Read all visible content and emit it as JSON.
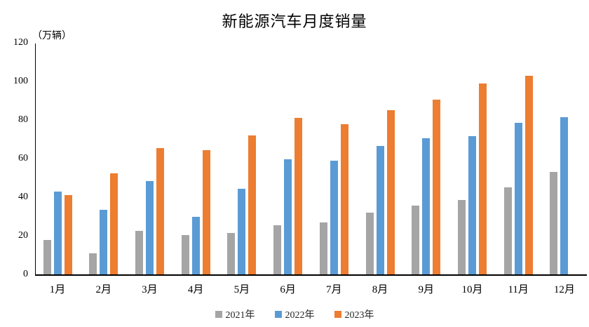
{
  "chart_data": {
    "type": "bar",
    "title": "新能源汽车月度销量",
    "unit_label": "（万辆）",
    "categories": [
      "1月",
      "2月",
      "3月",
      "4月",
      "5月",
      "6月",
      "7月",
      "8月",
      "9月",
      "10月",
      "11月",
      "12月"
    ],
    "series": [
      {
        "name": "2021年",
        "color": "#A5A5A5",
        "values": [
          18,
          11,
          22.5,
          20.5,
          21.5,
          25.5,
          27,
          32,
          35.5,
          38.5,
          45,
          53
        ]
      },
      {
        "name": "2022年",
        "color": "#5B9BD5",
        "values": [
          43,
          33.5,
          48.5,
          30,
          44.5,
          59.5,
          59,
          66.5,
          70.5,
          71.5,
          78.5,
          81.5
        ]
      },
      {
        "name": "2023年",
        "color": "#ED7D31",
        "values": [
          41,
          52.5,
          65.5,
          64.5,
          72,
          81,
          78,
          85,
          90.5,
          99,
          103,
          null
        ]
      }
    ],
    "ylim": [
      0,
      120
    ],
    "yticks": [
      0,
      20,
      40,
      60,
      80,
      100,
      120
    ],
    "grid": false,
    "legend_position": "bottom",
    "background_color": "#FFFFFF",
    "axis_color": "#000000"
  }
}
